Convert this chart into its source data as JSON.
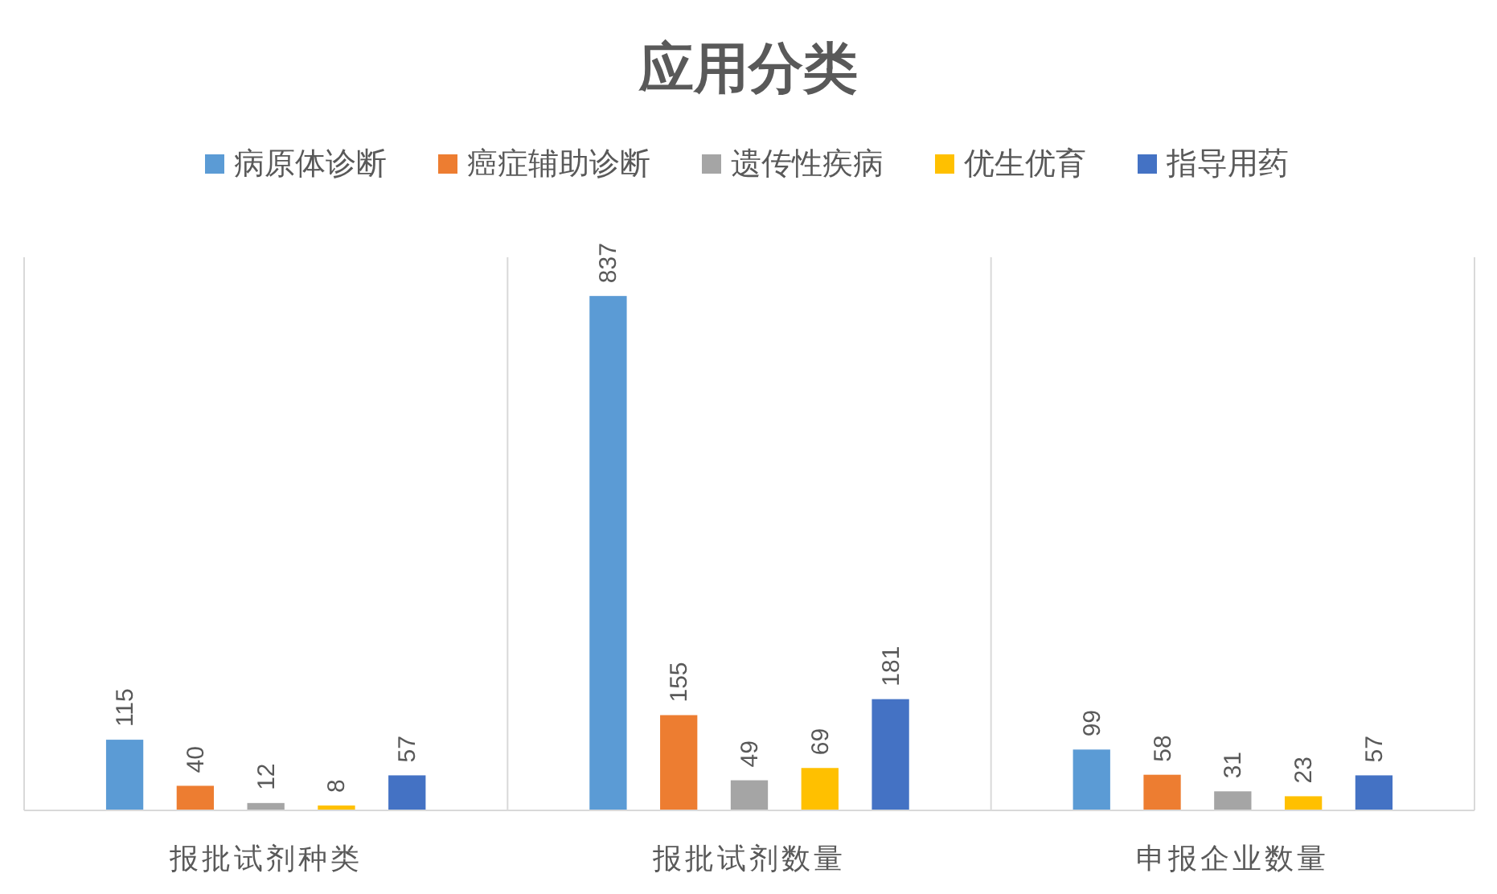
{
  "chart_data": {
    "type": "bar",
    "title": "应用分类",
    "categories": [
      "报批试剂种类",
      "报批试剂数量",
      "申报企业数量"
    ],
    "series": [
      {
        "name": "病原体诊断",
        "color": "#5b9bd5",
        "values": [
          115,
          837,
          99
        ]
      },
      {
        "name": "癌症辅助诊断",
        "color": "#ed7d31",
        "values": [
          40,
          155,
          58
        ]
      },
      {
        "name": "遗传性疾病",
        "color": "#a5a5a5",
        "values": [
          12,
          49,
          31
        ]
      },
      {
        "name": "优生优育",
        "color": "#ffc000",
        "values": [
          8,
          69,
          23
        ]
      },
      {
        "name": "指导用药",
        "color": "#4472c4",
        "values": [
          57,
          181,
          57
        ]
      }
    ],
    "data_labels": true,
    "legend": "top",
    "grid": "x"
  }
}
